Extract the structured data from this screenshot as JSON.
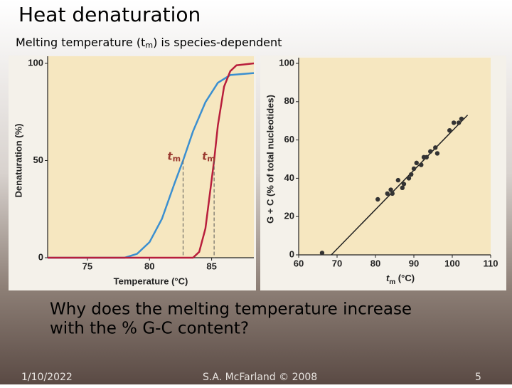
{
  "title": "Heat denaturation",
  "subtitle": [
    "Melting temperature (t",
    "m",
    ") is species-dependent"
  ],
  "question": [
    "Why does the melting temperature increase",
    "with the % G-C content?"
  ],
  "footer": {
    "date": "1/10/2022",
    "author": "S.A. McFarland © 2008",
    "page": "5"
  },
  "chart_data": [
    {
      "type": "line",
      "xlabel": "Temperature (°C)",
      "ylabel": "Denaturation (%)",
      "xlim": [
        71.8,
        88.4
      ],
      "xticks": [
        75,
        80,
        85
      ],
      "ylim": [
        0,
        100
      ],
      "yticks": [
        0,
        50,
        100
      ],
      "tm_label": [
        "t",
        "m"
      ],
      "series": [
        {
          "color": "#3b8fd0",
          "tm": 82.7,
          "x": [
            71.8,
            78,
            79,
            80,
            81,
            82,
            82.7,
            83.5,
            84.5,
            85.5,
            86.5,
            88.4
          ],
          "values": [
            0,
            0,
            2,
            8,
            20,
            38,
            50,
            65,
            80,
            90,
            94,
            95
          ]
        },
        {
          "color": "#b81e3c",
          "tm": 85.2,
          "x": [
            71.8,
            83.5,
            84,
            84.5,
            85,
            85.2,
            85.5,
            86,
            86.5,
            87,
            88.4
          ],
          "values": [
            0,
            0,
            3,
            15,
            40,
            50,
            68,
            88,
            96,
            99,
            100
          ]
        }
      ]
    },
    {
      "type": "scatter",
      "xlabel": [
        "t",
        "m",
        " (°C)"
      ],
      "ylabel": "G + C (% of total nucleotides)",
      "xlim": [
        60,
        110
      ],
      "xticks": [
        60,
        70,
        80,
        90,
        100,
        110
      ],
      "ylim": [
        0,
        100
      ],
      "yticks": [
        0,
        20,
        40,
        60,
        80,
        100
      ],
      "color": "#333333",
      "x": [
        66.1,
        80.6,
        83.1,
        84,
        84.4,
        85.9,
        87,
        87.4,
        88.7,
        89.3,
        90,
        90.7,
        91.9,
        92.6,
        93.3,
        94.3,
        95.6,
        96.1,
        99.3,
        100.4,
        101.7,
        102.4
      ],
      "values": [
        1,
        29,
        32,
        34,
        32,
        39,
        35,
        37,
        40,
        42,
        45,
        48,
        47,
        51,
        51,
        54,
        56,
        53,
        65,
        69,
        69,
        71
      ],
      "fit_line": {
        "x": [
          68.5,
          104
        ],
        "values": [
          0,
          73
        ]
      }
    }
  ]
}
